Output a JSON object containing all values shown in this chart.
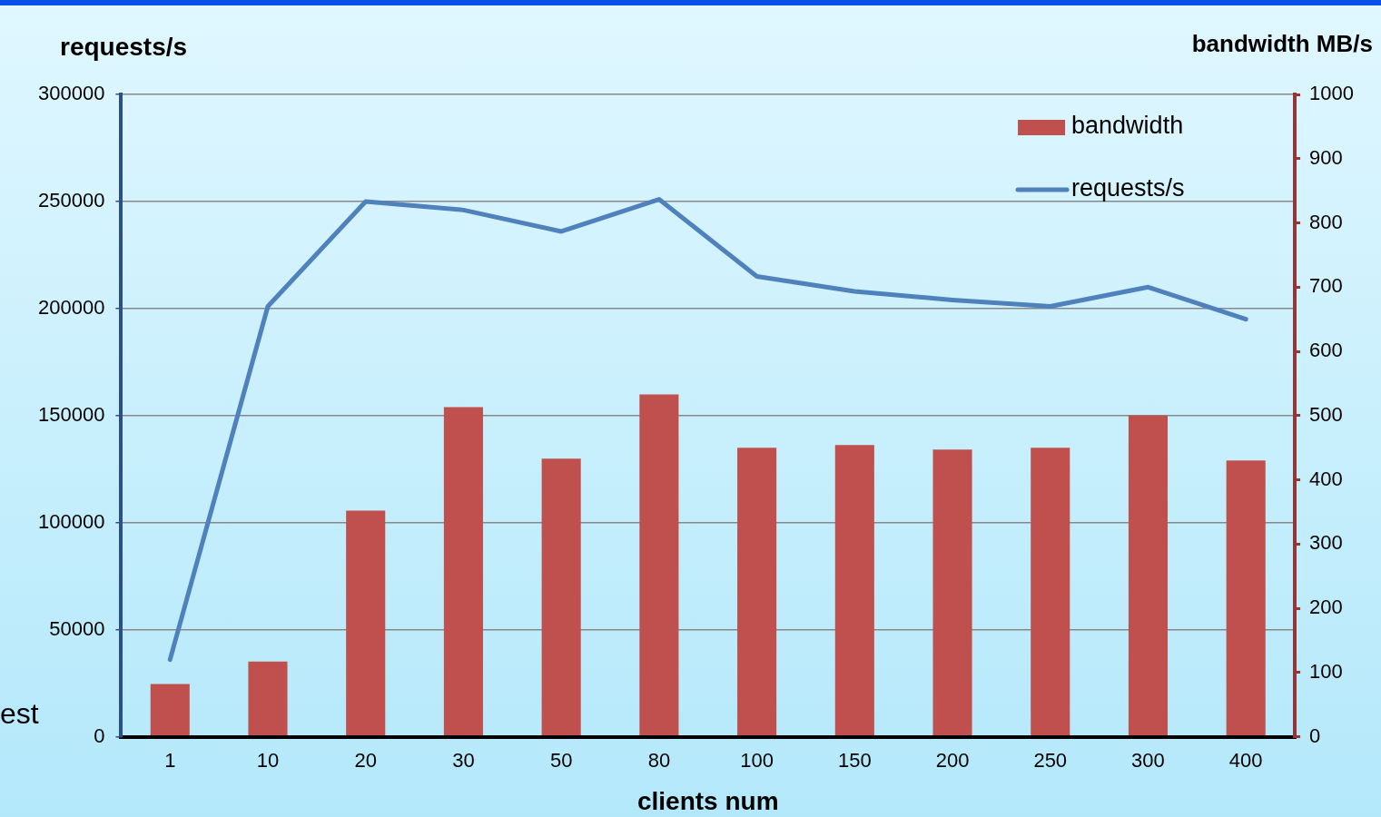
{
  "chart_data": {
    "type": "bar",
    "categories": [
      "1",
      "10",
      "20",
      "30",
      "50",
      "80",
      "100",
      "150",
      "200",
      "250",
      "300",
      "400"
    ],
    "series": [
      {
        "name": "bandwidth",
        "axis": "y2",
        "color": "#c0504d",
        "values": [
          82,
          117,
          352,
          513,
          433,
          533,
          450,
          454,
          447,
          450,
          500,
          430
        ]
      },
      {
        "name": "requests/s",
        "type": "line",
        "axis": "y",
        "color": "#4f81bd",
        "values": [
          36000,
          201000,
          250000,
          246000,
          236000,
          251000,
          215000,
          208000,
          204000,
          201000,
          210000,
          195000
        ]
      }
    ],
    "xlabel": "clients num",
    "ylabel": "requests/s",
    "y2label": "bandwidth MB/s",
    "ylim": [
      0,
      300000
    ],
    "yticks": [
      0,
      50000,
      100000,
      150000,
      200000,
      250000,
      300000
    ],
    "y2lim": [
      0,
      1000
    ],
    "y2ticks": [
      0,
      100,
      200,
      300,
      400,
      500,
      600,
      700,
      800,
      900,
      1000
    ],
    "grid": "y",
    "legend": "top right",
    "marker": "none",
    "line_style": "solid",
    "annotations": [
      "est"
    ]
  }
}
